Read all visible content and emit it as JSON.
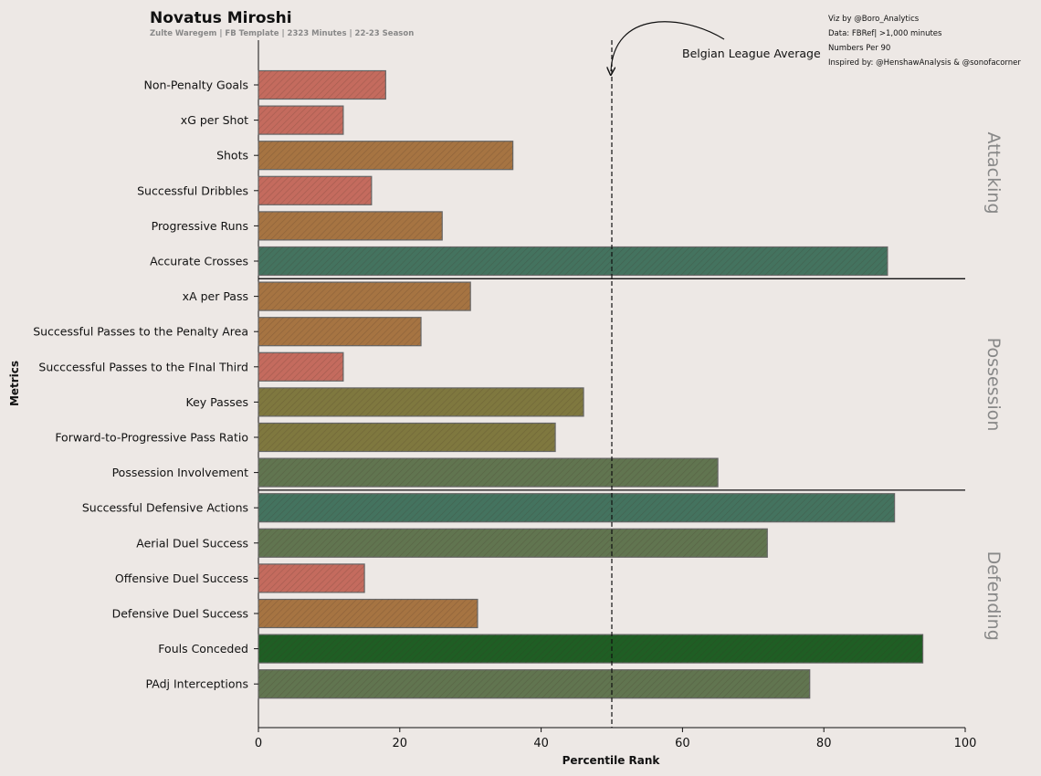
{
  "header": {
    "title": "Novatus Miroshi",
    "subtitle": "Zulte Waregem | FB Template | 2323 Minutes | 22-23 Season"
  },
  "credits": [
    "Viz by @Boro_Analytics",
    "Data: FBRef| >1,000 minutes",
    "Numbers Per 90",
    "Inspired by: @HenshawAnalysis & @sonofacorner"
  ],
  "colors": {
    "background": "#ede8e5",
    "low": "#c46b5e",
    "mid_low": "#a67442",
    "mid": "#7f783f",
    "mid_high": "#617550",
    "high": "#44735f",
    "top": "#1f5e24"
  },
  "chart_data": {
    "type": "bar",
    "orientation": "horizontal",
    "xlabel": "Percentile Rank",
    "ylabel": "Metrics",
    "xlim": [
      0,
      100
    ],
    "xticks": [
      0,
      20,
      40,
      60,
      80,
      100
    ],
    "reference_line": {
      "value": 50,
      "label": "Belgian League Average"
    },
    "sections": [
      {
        "name": "Attacking",
        "metrics": [
          {
            "label": "Non-Penalty Goals",
            "value": 18
          },
          {
            "label": "xG per Shot",
            "value": 12
          },
          {
            "label": "Shots",
            "value": 36
          },
          {
            "label": "Successful Dribbles",
            "value": 16
          },
          {
            "label": "Progressive Runs",
            "value": 26
          },
          {
            "label": "Accurate Crosses",
            "value": 89
          }
        ]
      },
      {
        "name": "Possession",
        "metrics": [
          {
            "label": "xA per Pass",
            "value": 30
          },
          {
            "label": "Successful Passes to the Penalty Area",
            "value": 23
          },
          {
            "label": "Succcessful Passes to the FInal Third",
            "value": 12
          },
          {
            "label": "Key Passes",
            "value": 46
          },
          {
            "label": "Forward-to-Progressive Pass Ratio",
            "value": 42
          },
          {
            "label": "Possession Involvement",
            "value": 65
          }
        ]
      },
      {
        "name": "Defending",
        "metrics": [
          {
            "label": "Successful Defensive Actions",
            "value": 90
          },
          {
            "label": "Aerial Duel Success",
            "value": 72
          },
          {
            "label": "Offensive Duel Success",
            "value": 15
          },
          {
            "label": "Defensive Duel Success",
            "value": 31
          },
          {
            "label": "Fouls Conceded",
            "value": 94
          },
          {
            "label": "PAdj Interceptions",
            "value": 78
          }
        ]
      }
    ]
  }
}
